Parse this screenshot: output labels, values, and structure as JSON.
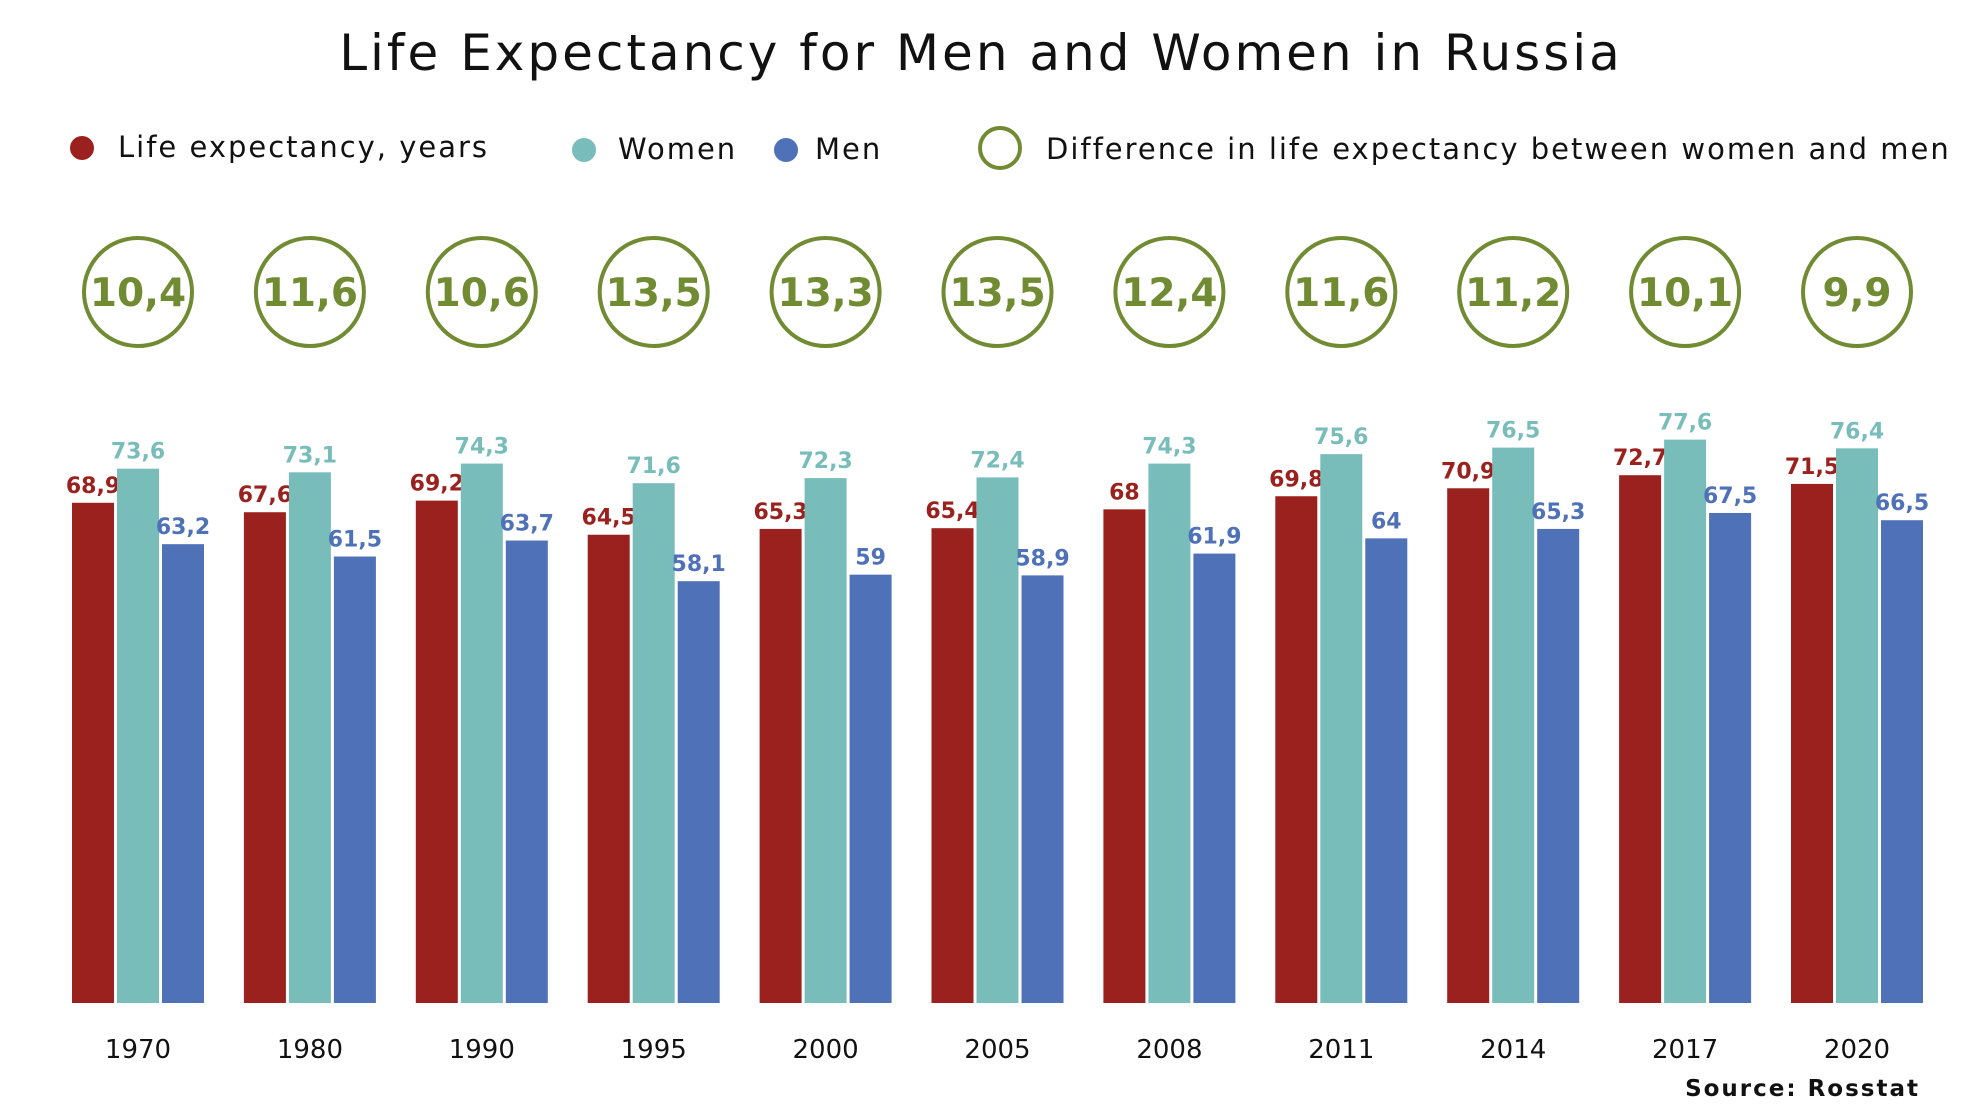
{
  "chart_data": {
    "type": "bar",
    "title": "Life Expectancy for Men and Women in Russia",
    "categories": [
      "1970",
      "1980",
      "1990",
      "1995",
      "2000",
      "2005",
      "2008",
      "2011",
      "2014",
      "2017",
      "2020"
    ],
    "series": [
      {
        "name": "Life expectancy, years",
        "color": "#9b211e",
        "values": [
          68.9,
          67.6,
          69.2,
          64.5,
          65.3,
          65.4,
          68,
          69.8,
          70.9,
          72.7,
          71.5
        ],
        "labels": [
          "68,9",
          "67,6",
          "69,2",
          "64,5",
          "65,3",
          "65,4",
          "68",
          "69,8",
          "70,9",
          "72,7",
          "71,5"
        ]
      },
      {
        "name": "Women",
        "color": "#79bdbb",
        "values": [
          73.6,
          73.1,
          74.3,
          71.6,
          72.3,
          72.4,
          74.3,
          75.6,
          76.5,
          77.6,
          76.4
        ],
        "labels": [
          "73,6",
          "73,1",
          "74,3",
          "71,6",
          "72,3",
          "72,4",
          "74,3",
          "75,6",
          "76,5",
          "77,6",
          "76,4"
        ]
      },
      {
        "name": "Men",
        "color": "#4f71b7",
        "values": [
          63.2,
          61.5,
          63.7,
          58.1,
          59,
          58.9,
          61.9,
          64,
          65.3,
          67.5,
          66.5
        ],
        "labels": [
          "63,2",
          "61,5",
          "63,7",
          "58,1",
          "59",
          "58,9",
          "61,9",
          "64",
          "65,3",
          "67,5",
          "66,5"
        ]
      }
    ],
    "difference": {
      "name": "Difference in life expectancy between women and men",
      "color": "#718b32",
      "values": [
        10.4,
        11.6,
        10.6,
        13.5,
        13.3,
        13.5,
        12.4,
        11.6,
        11.2,
        10.1,
        9.9
      ],
      "labels": [
        "10,4",
        "11,6",
        "10,6",
        "13,5",
        "13,3",
        "13,5",
        "12,4",
        "11,6",
        "11,2",
        "10,1",
        "9,9"
      ]
    },
    "ylim": [
      0,
      80
    ],
    "grid": false,
    "legend": "top",
    "source": "Source: Rosstat"
  }
}
